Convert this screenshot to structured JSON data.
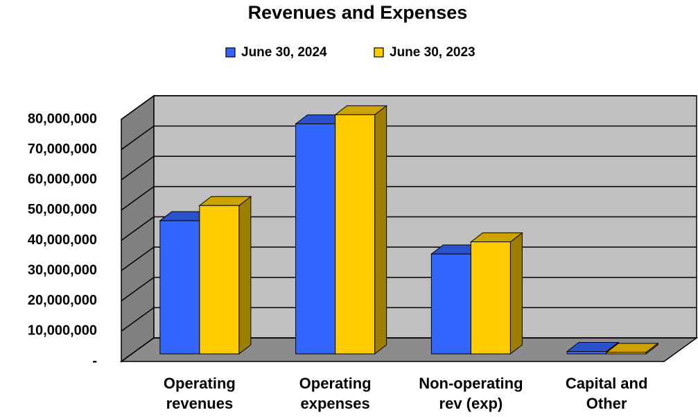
{
  "chart_data": {
    "type": "bar3d",
    "title": "Revenues and Expenses",
    "categories": [
      "Operating revenues",
      "Operating expenses",
      "Non-operating rev (exp)",
      "Capital and Other"
    ],
    "series": [
      {
        "name": "June 30, 2024",
        "color": "#3366ff",
        "values": [
          44000000,
          76000000,
          33000000,
          800000
        ]
      },
      {
        "name": "June 30, 2023",
        "color": "#ffcc00",
        "values": [
          49000000,
          79000000,
          37000000,
          500000
        ]
      }
    ],
    "ylim": [
      0,
      80000000
    ],
    "yticks": [
      {
        "value": 0,
        "label": "-"
      },
      {
        "value": 10000000,
        "label": "10,000,000"
      },
      {
        "value": 20000000,
        "label": "20,000,000"
      },
      {
        "value": 30000000,
        "label": "30,000,000"
      },
      {
        "value": 40000000,
        "label": "40,000,000"
      },
      {
        "value": 50000000,
        "label": "50,000,000"
      },
      {
        "value": 60000000,
        "label": "60,000,000"
      },
      {
        "value": 70000000,
        "label": "70,000,000"
      },
      {
        "value": 80000000,
        "label": "80,000,000"
      }
    ],
    "grid": true,
    "legend": "top"
  }
}
